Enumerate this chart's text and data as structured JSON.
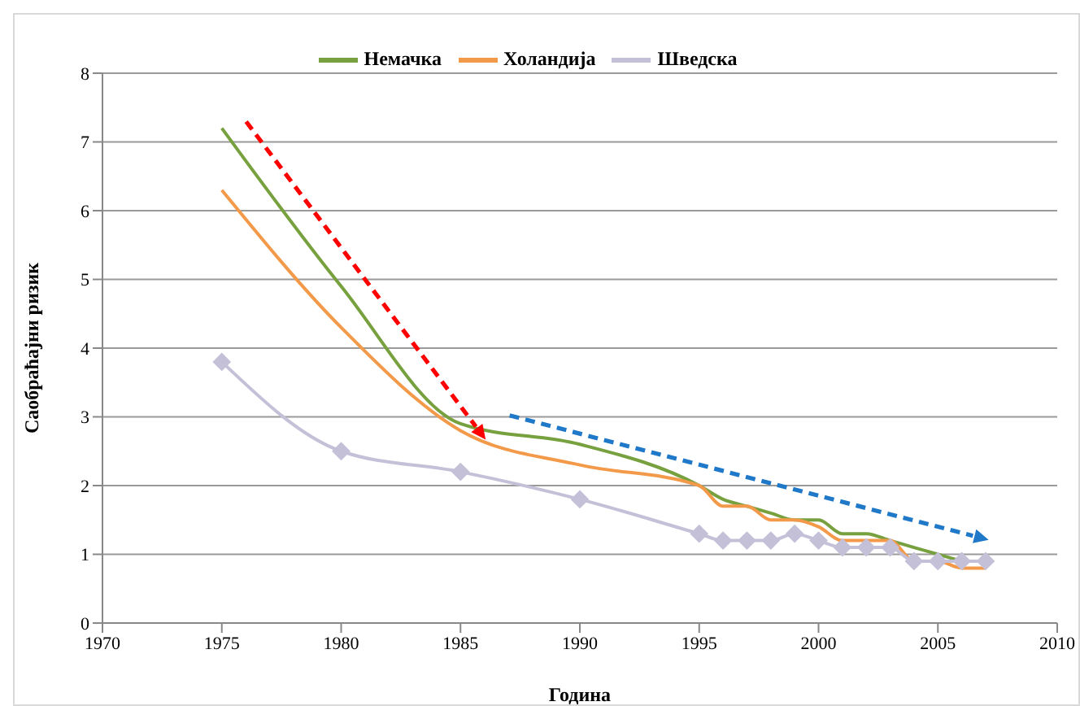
{
  "chart_data": {
    "type": "line",
    "xlabel": "Година",
    "ylabel": "Саобраћајни ризик",
    "x": [
      1975,
      1980,
      1985,
      1990,
      1995,
      1996,
      1997,
      1998,
      1999,
      2000,
      2001,
      2002,
      2003,
      2004,
      2005,
      2006,
      2007
    ],
    "series": [
      {
        "name": "Немачка",
        "color": "#77a03f",
        "values": [
          7.2,
          4.9,
          2.9,
          2.6,
          2.0,
          1.8,
          1.7,
          1.6,
          1.5,
          1.5,
          1.3,
          1.3,
          1.2,
          1.1,
          1.0,
          0.9,
          null
        ]
      },
      {
        "name": "Холандија",
        "color": "#f39a4a",
        "values": [
          6.3,
          4.3,
          2.8,
          2.3,
          2.0,
          1.7,
          1.7,
          1.5,
          1.5,
          1.4,
          1.2,
          1.2,
          1.2,
          0.9,
          0.9,
          0.8,
          0.8
        ]
      },
      {
        "name": "Шведска",
        "color": "#c4c0d8",
        "marker": "diamond",
        "values": [
          3.8,
          2.5,
          2.2,
          1.8,
          1.3,
          1.2,
          1.2,
          1.2,
          1.3,
          1.2,
          1.1,
          1.1,
          1.1,
          0.9,
          0.9,
          0.9,
          0.9
        ]
      }
    ],
    "xlim": [
      1970,
      2010
    ],
    "xticks": [
      1970,
      1975,
      1980,
      1985,
      1990,
      1995,
      2000,
      2005,
      2010
    ],
    "ylim": [
      0,
      8
    ],
    "yticks": [
      0,
      1,
      2,
      3,
      4,
      5,
      6,
      7,
      8
    ],
    "grid": "y",
    "legend": "top",
    "marker": "none",
    "line_style": "solid"
  }
}
